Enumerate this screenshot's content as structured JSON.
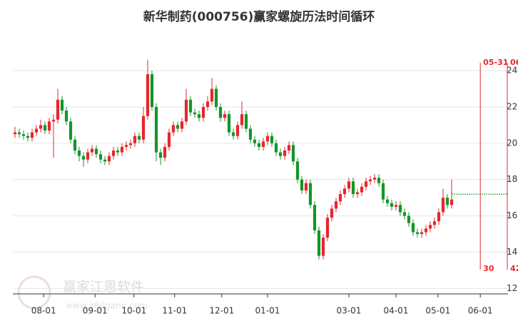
{
  "chart_data": {
    "type": "candlestick",
    "title": "新华制药(000756)赢家螺旋历法时间循环",
    "watermark": "赢家江恩软件",
    "watermark_url": "www.360gann.com",
    "up_color": "#e8262d",
    "down_color": "#14962a",
    "grid": true,
    "ylim": [
      11.7,
      26.4
    ],
    "yticks": [
      12,
      14,
      16,
      18,
      20,
      22,
      24
    ],
    "xlim": [
      -0.5,
      115.17
    ],
    "xticks": [
      {
        "value": 6.7,
        "label": "08-01"
      },
      {
        "value": 18.7,
        "label": "09-01"
      },
      {
        "value": 27.8,
        "label": "10-01"
      },
      {
        "value": 37.3,
        "label": "11-01"
      },
      {
        "value": 48.3,
        "label": "12-01"
      },
      {
        "value": 59,
        "label": "01-01"
      },
      {
        "value": 78,
        "label": "03-01"
      },
      {
        "value": 89,
        "label": "04-01"
      },
      {
        "value": 98.8,
        "label": "05-01"
      },
      {
        "value": 108.7,
        "label": "06-01"
      }
    ],
    "open": [
      20.5,
      20.6,
      20.5,
      20.4,
      20.3,
      20.6,
      20.8,
      21.0,
      20.7,
      21.2,
      21.3,
      22.4,
      21.8,
      21.2,
      20.2,
      19.6,
      19.3,
      19.1,
      19.5,
      19.7,
      19.4,
      19.1,
      19.0,
      19.3,
      19.6,
      19.5,
      19.8,
      19.9,
      20.0,
      20.4,
      20.2,
      21.5,
      23.8,
      22.0,
      19.5,
      19.2,
      19.8,
      20.6,
      21.0,
      20.8,
      21.2,
      22.4,
      21.7,
      21.6,
      21.4,
      22.0,
      22.3,
      23.0,
      22.0,
      21.4,
      21.6,
      20.6,
      20.4,
      21.0,
      21.6,
      20.8,
      20.2,
      20.0,
      19.8,
      20.1,
      20.4,
      20.0,
      19.5,
      19.3,
      19.6,
      19.9,
      19.0,
      18.0,
      17.4,
      17.8,
      16.6,
      15.2,
      13.8,
      14.8,
      15.9,
      16.4,
      16.8,
      17.2,
      17.5,
      17.9,
      17.2,
      17.3,
      17.6,
      17.9,
      18.0,
      18.1,
      17.8,
      16.9,
      16.7,
      16.5,
      16.6,
      16.2,
      16.0,
      15.6,
      15.1,
      15.0,
      15.1,
      15.3,
      15.5,
      15.7,
      16.2,
      17.0,
      16.6
    ],
    "high": [
      20.9,
      20.8,
      20.7,
      20.6,
      20.8,
      21.0,
      21.3,
      21.2,
      21.4,
      21.6,
      23.0,
      22.6,
      22.0,
      21.4,
      20.4,
      19.8,
      19.5,
      19.7,
      19.9,
      19.9,
      19.6,
      19.3,
      19.5,
      19.8,
      19.8,
      20.0,
      20.1,
      20.2,
      20.6,
      20.6,
      22.0,
      24.6,
      24.0,
      22.2,
      19.7,
      20.0,
      20.8,
      21.2,
      21.2,
      21.4,
      23.0,
      22.6,
      21.9,
      21.8,
      22.2,
      22.6,
      23.6,
      23.2,
      22.2,
      21.8,
      21.8,
      20.8,
      21.2,
      22.3,
      21.8,
      21.0,
      20.4,
      20.2,
      20.3,
      20.6,
      20.6,
      20.2,
      19.7,
      19.8,
      20.1,
      20.1,
      19.2,
      18.2,
      18.0,
      18.0,
      16.8,
      15.4,
      15.0,
      16.1,
      16.6,
      17.0,
      17.4,
      17.7,
      18.1,
      18.1,
      17.5,
      17.8,
      18.1,
      18.2,
      18.3,
      18.3,
      18.0,
      17.1,
      16.9,
      16.8,
      16.8,
      16.4,
      16.2,
      15.8,
      15.3,
      15.3,
      15.5,
      15.7,
      15.9,
      16.4,
      17.5,
      17.2,
      18.0
    ],
    "low": [
      20.3,
      20.3,
      20.2,
      20.1,
      20.1,
      20.4,
      20.6,
      20.5,
      20.5,
      19.2,
      21.1,
      21.6,
      21.0,
      20.0,
      19.4,
      19.0,
      18.7,
      18.9,
      19.3,
      19.2,
      18.9,
      18.8,
      18.8,
      19.1,
      19.3,
      19.3,
      19.6,
      19.7,
      19.8,
      20.0,
      20.0,
      21.3,
      21.8,
      19.0,
      18.8,
      19.0,
      19.6,
      20.4,
      20.6,
      20.6,
      21.0,
      21.5,
      21.4,
      21.2,
      21.2,
      21.8,
      22.1,
      21.8,
      21.2,
      21.2,
      20.4,
      20.2,
      20.2,
      20.8,
      20.6,
      20.0,
      19.8,
      19.6,
      19.6,
      19.9,
      19.8,
      19.3,
      19.1,
      19.1,
      19.4,
      18.8,
      17.8,
      17.2,
      17.2,
      16.4,
      15.0,
      13.6,
      13.6,
      14.6,
      15.7,
      16.2,
      16.6,
      17.0,
      17.3,
      17.0,
      17.0,
      17.1,
      17.4,
      17.7,
      17.8,
      17.6,
      16.7,
      16.5,
      16.3,
      16.3,
      16.0,
      15.8,
      15.4,
      14.9,
      14.8,
      14.8,
      14.9,
      15.1,
      15.3,
      15.5,
      16.0,
      16.4,
      16.4
    ],
    "close": [
      20.6,
      20.5,
      20.4,
      20.3,
      20.6,
      20.8,
      21.0,
      20.7,
      21.2,
      21.3,
      22.4,
      21.8,
      21.2,
      20.2,
      19.6,
      19.3,
      19.1,
      19.5,
      19.7,
      19.4,
      19.1,
      19.0,
      19.3,
      19.6,
      19.5,
      19.8,
      19.9,
      20.0,
      20.4,
      20.2,
      21.5,
      23.8,
      22.0,
      19.5,
      19.2,
      19.8,
      20.6,
      21.0,
      20.8,
      21.2,
      22.4,
      21.7,
      21.6,
      21.4,
      22.0,
      22.3,
      23.0,
      22.0,
      21.4,
      21.6,
      20.6,
      20.4,
      21.0,
      21.6,
      20.8,
      20.2,
      20.0,
      19.8,
      20.1,
      20.4,
      20.0,
      19.5,
      19.3,
      19.6,
      19.9,
      19.0,
      18.0,
      17.4,
      17.8,
      16.6,
      15.2,
      13.8,
      14.8,
      15.9,
      16.4,
      16.8,
      17.2,
      17.5,
      17.9,
      17.2,
      17.3,
      17.6,
      17.9,
      18.0,
      18.1,
      17.8,
      16.9,
      16.7,
      16.5,
      16.6,
      16.2,
      16.0,
      15.6,
      15.1,
      15.0,
      15.1,
      15.3,
      15.5,
      15.7,
      16.2,
      17.0,
      16.6,
      16.9
    ],
    "last_price": 17.2,
    "last_price_color": "#14962a",
    "cycle_color": "#e8262d",
    "cycle_lines": [
      {
        "x": 108.7,
        "top_label": "05-31",
        "bottom_label": "30"
      },
      {
        "x": 115.0,
        "top_label": "06",
        "bottom_label": "42"
      }
    ]
  }
}
